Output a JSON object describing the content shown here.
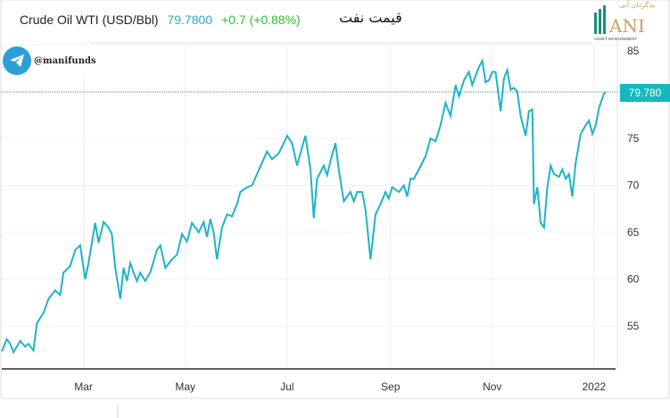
{
  "header": {
    "instrument": "Crude Oil WTI (USD/Bbl)",
    "price": "79.7800",
    "change": "+0.7 (+0.88%)",
    "persian_title": "قیمت نفت"
  },
  "logo": {
    "text": "ANI",
    "subtitle": "ASSET MANAGEMENT",
    "persian": "سبدگردان آنی"
  },
  "telegram": {
    "handle": "@manifunds"
  },
  "price_label": "79.780",
  "colors": {
    "line": "#1fb3c8",
    "label_bg": "#14b8be",
    "price": "#2fa9c7",
    "change": "#2fbf2f"
  },
  "chart_data": {
    "type": "line",
    "title": "Crude Oil WTI (USD/Bbl)",
    "xlabel": "",
    "ylabel": "",
    "x_unit": "day of 2021",
    "x_ticks": [
      {
        "day": 59,
        "label": "Mar"
      },
      {
        "day": 120,
        "label": "May"
      },
      {
        "day": 181,
        "label": "Jul"
      },
      {
        "day": 243,
        "label": "Sep"
      },
      {
        "day": 304,
        "label": "Nov"
      },
      {
        "day": 365,
        "label": "2022"
      }
    ],
    "y_ticks": [
      55,
      60,
      65,
      70,
      75,
      80,
      85
    ],
    "y_tick_labels": [
      "55",
      "60",
      "65",
      "70",
      "75",
      "",
      "85"
    ],
    "ylim": [
      50.5,
      85
    ],
    "last_value": 79.78,
    "x": [
      10,
      13,
      15,
      17,
      21,
      24,
      26,
      29,
      31,
      35,
      38,
      42,
      45,
      47,
      51,
      54,
      57,
      60,
      62,
      66,
      68,
      71,
      74,
      76,
      78,
      81,
      83,
      85,
      87,
      89,
      91,
      93,
      96,
      99,
      103,
      105,
      108,
      112,
      115,
      118,
      121,
      124,
      128,
      131,
      133,
      135,
      137,
      139,
      142,
      145,
      148,
      151,
      153,
      157,
      160,
      163,
      166,
      169,
      172,
      176,
      179,
      181,
      184,
      187,
      189,
      192,
      195,
      197,
      199,
      203,
      205,
      207,
      210,
      212,
      215,
      219,
      221,
      223,
      226,
      228,
      231,
      234,
      237,
      240,
      242,
      244,
      248,
      251,
      253,
      255,
      257,
      260,
      264,
      267,
      270,
      273,
      276,
      279,
      282,
      284,
      287,
      290,
      292,
      296,
      298,
      300,
      302,
      304,
      306,
      309,
      311,
      313,
      315,
      317,
      319,
      321,
      324,
      326,
      328,
      329,
      331,
      333,
      335,
      337,
      339,
      341,
      344,
      346,
      348,
      350,
      352,
      354,
      357,
      360,
      362,
      364,
      366,
      368,
      371,
      372
    ],
    "values": [
      52.3,
      53.6,
      53.1,
      52.2,
      53.4,
      52.8,
      53.1,
      52.4,
      55.3,
      56.4,
      57.9,
      58.8,
      58.3,
      60.7,
      61.4,
      63.1,
      63.6,
      60.0,
      61.7,
      66.0,
      63.9,
      66.1,
      65.5,
      64.8,
      61.2,
      57.9,
      61.2,
      59.8,
      61.7,
      60.7,
      59.8,
      60.7,
      59.8,
      60.7,
      63.1,
      63.6,
      61.2,
      62.1,
      62.6,
      64.8,
      64.0,
      66.0,
      65.0,
      66.1,
      64.5,
      66.4,
      65.0,
      62.1,
      65.5,
      66.9,
      66.7,
      68.0,
      69.3,
      69.8,
      70.0,
      71.2,
      72.4,
      73.6,
      72.8,
      73.4,
      74.5,
      75.3,
      74.5,
      72.1,
      73.4,
      75.3,
      71.7,
      66.5,
      70.7,
      72.1,
      71.1,
      72.6,
      74.5,
      71.7,
      68.3,
      69.3,
      68.3,
      69.3,
      69.3,
      67.4,
      62.1,
      66.9,
      68.0,
      69.3,
      68.6,
      69.8,
      69.3,
      70.0,
      68.8,
      70.7,
      70.7,
      71.7,
      73.1,
      75.0,
      74.7,
      76.4,
      78.8,
      77.4,
      80.7,
      79.5,
      81.2,
      82.1,
      80.7,
      82.6,
      83.3,
      81.0,
      81.2,
      82.1,
      82.1,
      77.9,
      81.4,
      82.3,
      80.2,
      80.4,
      80.0,
      77.4,
      75.3,
      77.9,
      78.1,
      68.0,
      69.8,
      66.0,
      65.5,
      69.8,
      72.1,
      71.2,
      70.9,
      71.7,
      70.7,
      71.2,
      68.8,
      72.4,
      75.5,
      76.4,
      76.9,
      75.5,
      76.4,
      78.3,
      79.8,
      79.9
    ]
  }
}
